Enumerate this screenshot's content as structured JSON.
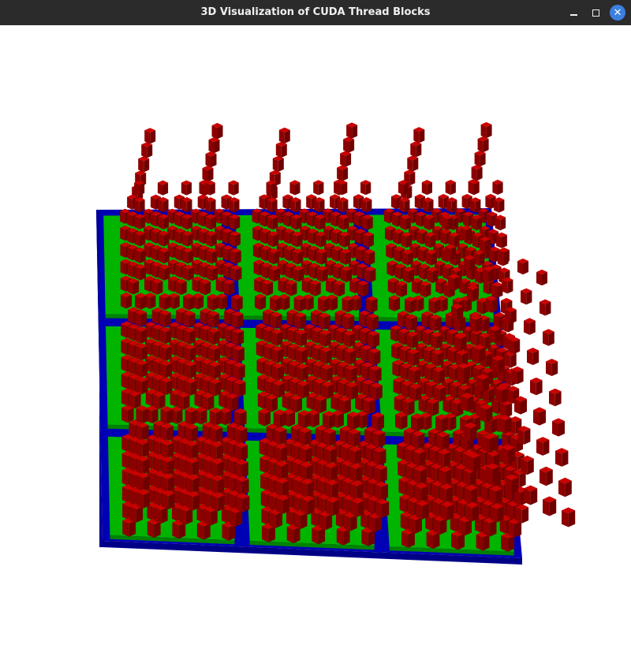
{
  "window": {
    "title": "3D Visualization of CUDA Thread Blocks",
    "buttons": {
      "minimize_icon": "minimize-icon",
      "maximize_icon": "maximize-icon",
      "close_icon": "close-icon",
      "close_glyph": "✕"
    }
  },
  "scene": {
    "background": "#ffffff",
    "grid_plane_color": "#0000b4",
    "block_plate_color": "#00b400",
    "thread_cube_color": "#b40000"
  }
}
